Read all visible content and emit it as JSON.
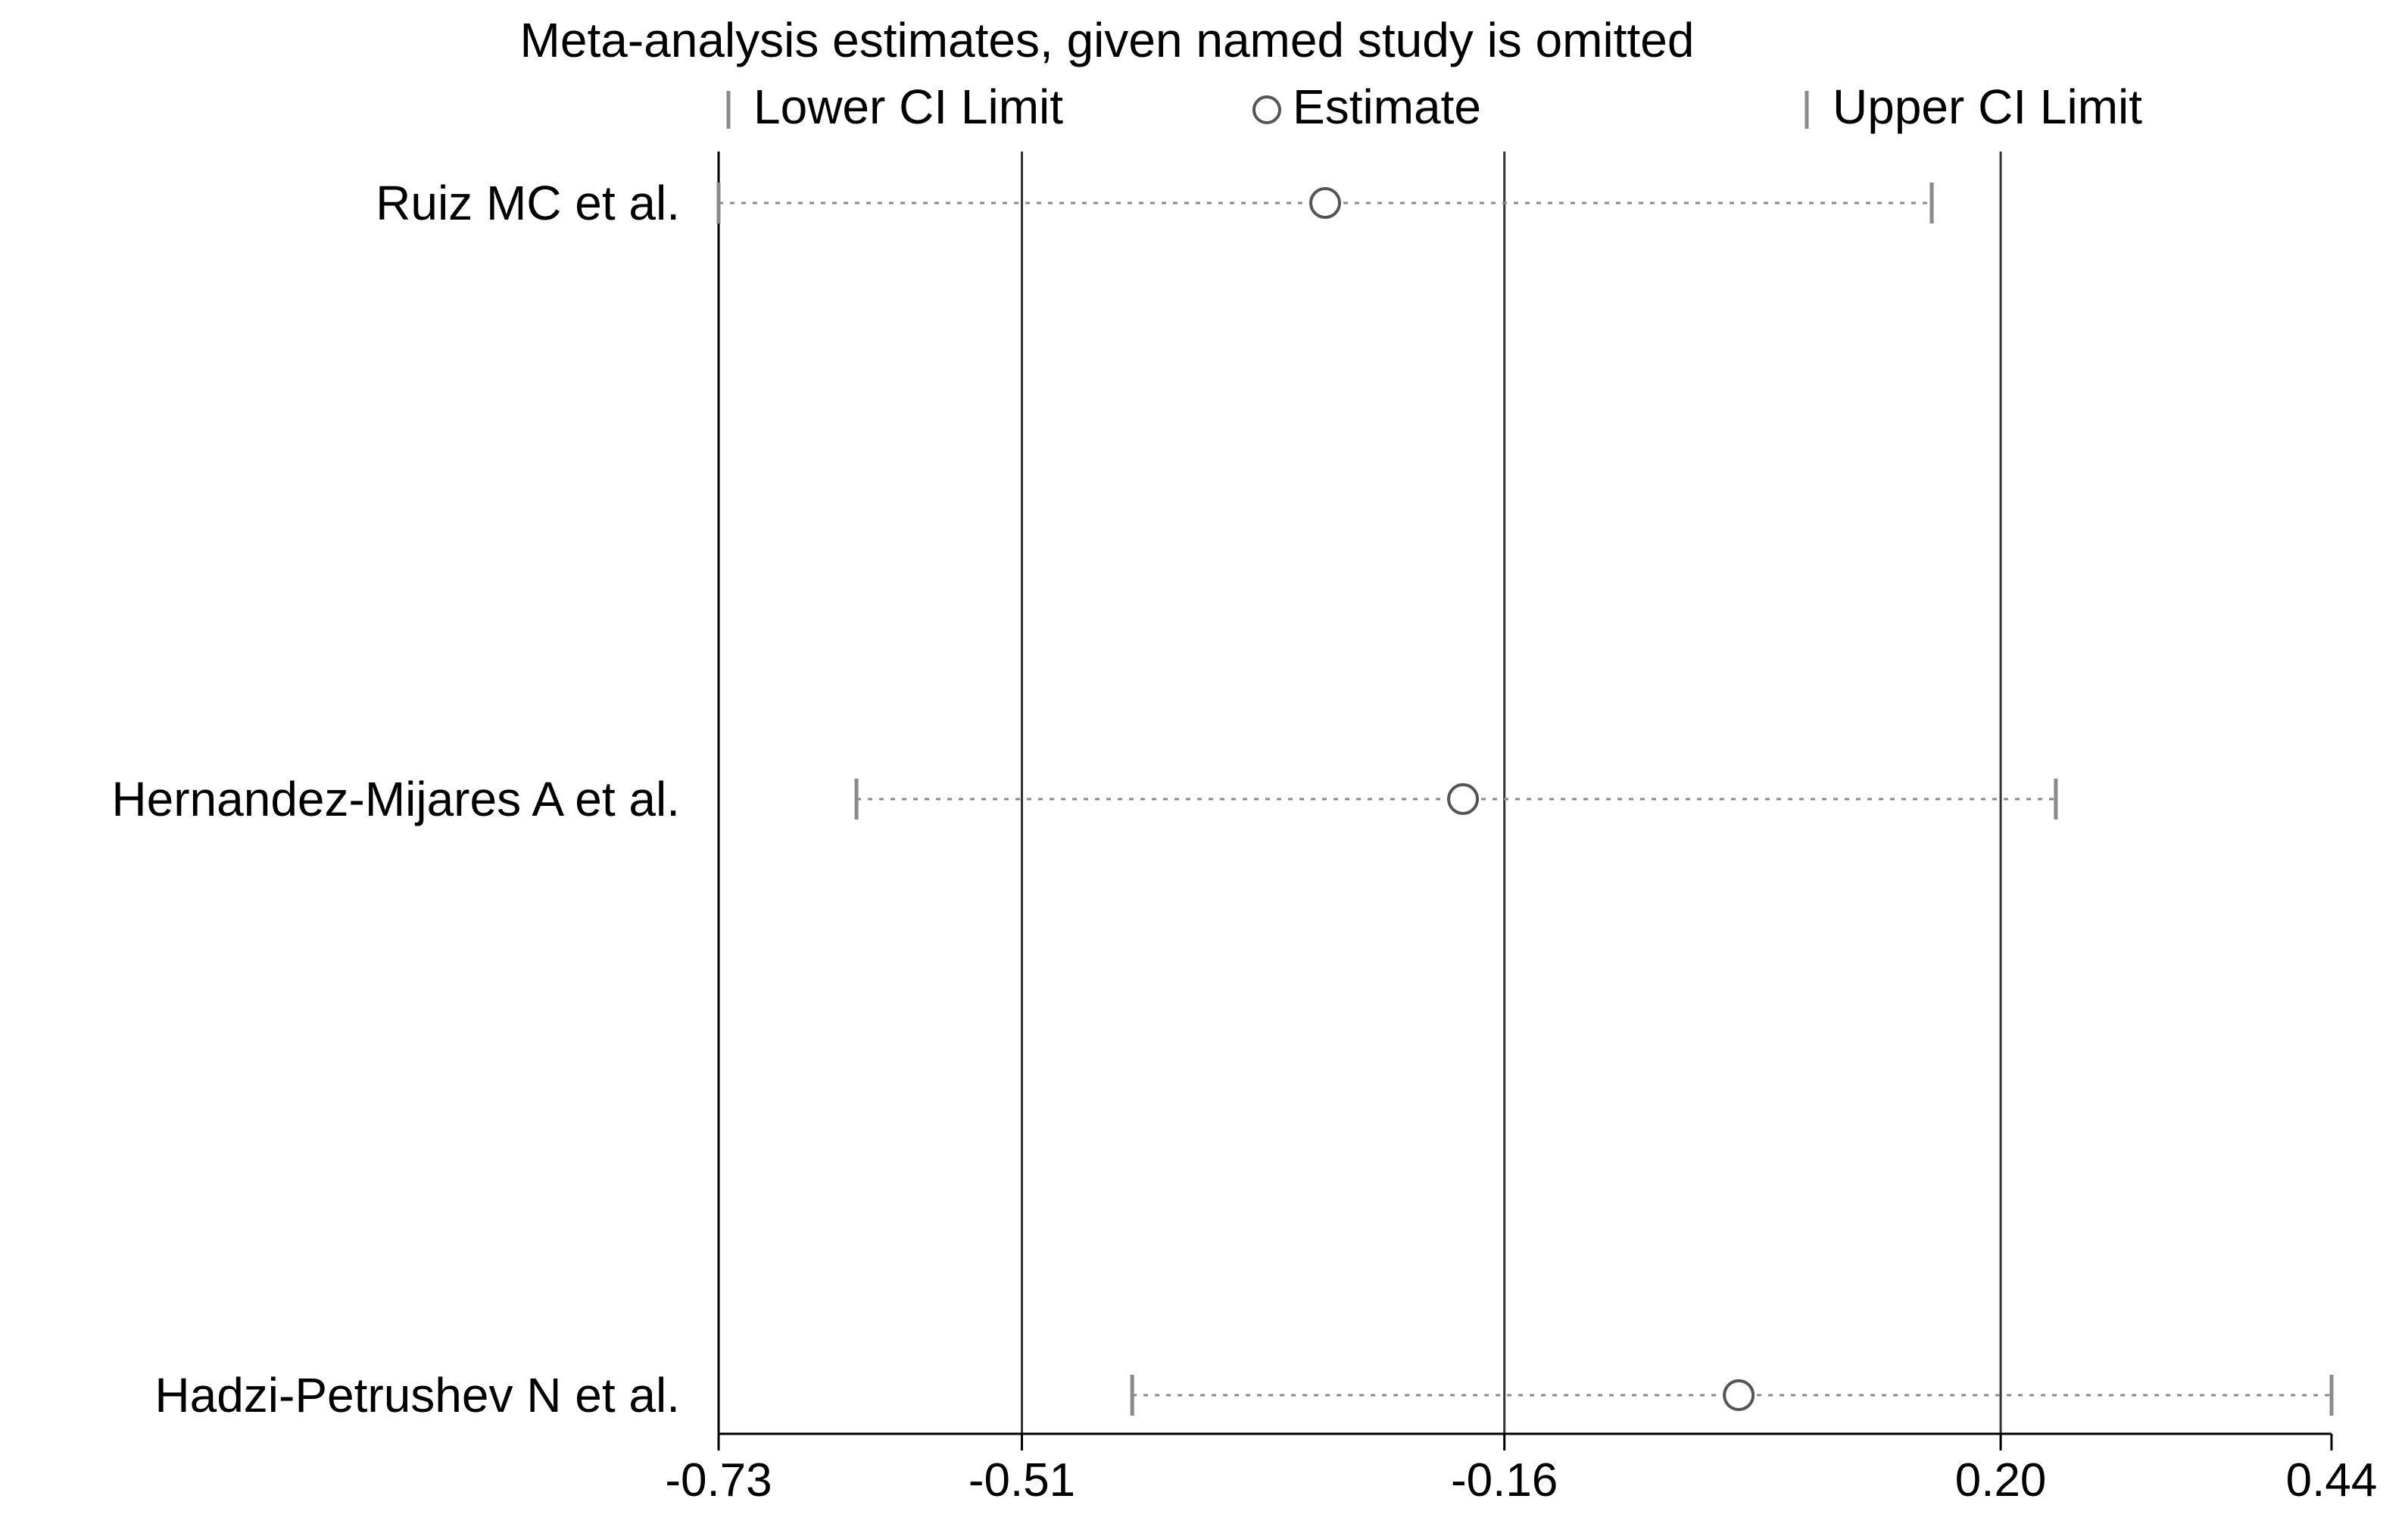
{
  "chart_data": {
    "type": "forest",
    "title": "Meta-analysis estimates, given named study is omitted",
    "legend": {
      "lower": "Lower CI Limit",
      "estimate": "Estimate",
      "upper": "Upper CI Limit",
      "placement": "top"
    },
    "xlim": [
      -0.73,
      0.44
    ],
    "ticks": [
      -0.73,
      -0.51,
      -0.16,
      0.2,
      0.44
    ],
    "tick_labels": [
      "-0.73",
      "-0.51",
      "-0.16",
      "0.20",
      "0.44"
    ],
    "reference_lines": [
      -0.51,
      -0.16,
      0.2
    ],
    "studies": [
      {
        "label": "Ruiz MC et al.",
        "lower": -0.73,
        "estimate": -0.29,
        "upper": 0.15
      },
      {
        "label": "Hernandez-Mijares A et al.",
        "lower": -0.63,
        "estimate": -0.19,
        "upper": 0.24
      },
      {
        "label": "Hadzi-Petrushev N et al.",
        "lower": -0.43,
        "estimate": 0.01,
        "upper": 0.44
      }
    ],
    "colors": {
      "axis": "#000000",
      "ci_line": "#8a8a8a",
      "marker": "#555555",
      "reference": "#333333"
    }
  }
}
